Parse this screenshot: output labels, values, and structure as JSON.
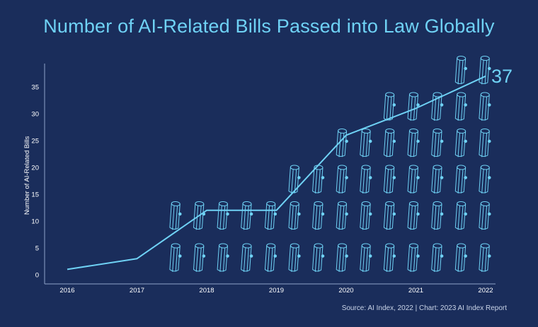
{
  "title": "Number of AI-Related Bills Passed into Law Globally",
  "source": "Source: AI Index, 2022 | Chart: 2023 AI Index Report",
  "colors": {
    "background": "#1a2d5b",
    "accent": "#6fd2f5",
    "text": "#ffffff",
    "axis": "#8fa3c8"
  },
  "chart_data": {
    "type": "line",
    "title": "Number of AI-Related Bills Passed into Law Globally",
    "xlabel": "",
    "ylabel": "Number of AI-Related Bills",
    "x": [
      "2016",
      "2017",
      "2018",
      "2019",
      "2020",
      "2021",
      "2022"
    ],
    "series": [
      {
        "values": [
          1,
          3,
          12,
          12,
          26,
          31,
          37
        ]
      }
    ],
    "ylim": [
      0,
      37
    ],
    "yticks": [
      0,
      5,
      10,
      15,
      20,
      25,
      30,
      35
    ],
    "end_label": "37",
    "pictogram_icon": "scroll-icon",
    "pictogram_rows": [
      14,
      14,
      9,
      7,
      5,
      2
    ],
    "grid": false
  }
}
